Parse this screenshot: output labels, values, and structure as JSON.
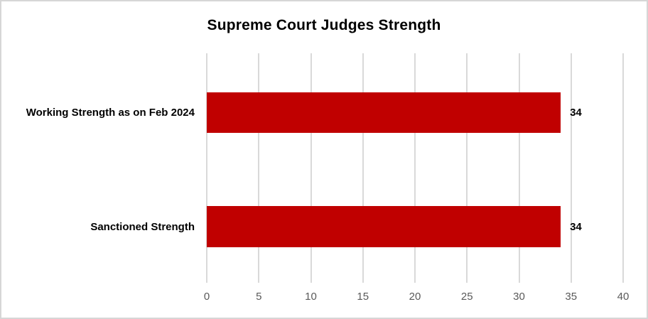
{
  "window": {
    "background_color": "#ffffff",
    "border_color": "#d6d6d6"
  },
  "chart_data": {
    "type": "bar",
    "orientation": "horizontal",
    "title": "Supreme Court Judges Strength",
    "categories": [
      "Working Strength as on Feb 2024",
      "Sanctioned Strength"
    ],
    "values": [
      34,
      34
    ],
    "data_labels": [
      "34",
      "34"
    ],
    "xlabel": "",
    "ylabel": "",
    "xlim": [
      0,
      40
    ],
    "xticks": [
      0,
      5,
      10,
      15,
      20,
      25,
      30,
      35,
      40
    ],
    "grid": true,
    "legend": false,
    "bar_color": "#c00000",
    "gridline_color": "#d9d9d9",
    "tick_label_color": "#595959",
    "text_color": "#000000"
  }
}
